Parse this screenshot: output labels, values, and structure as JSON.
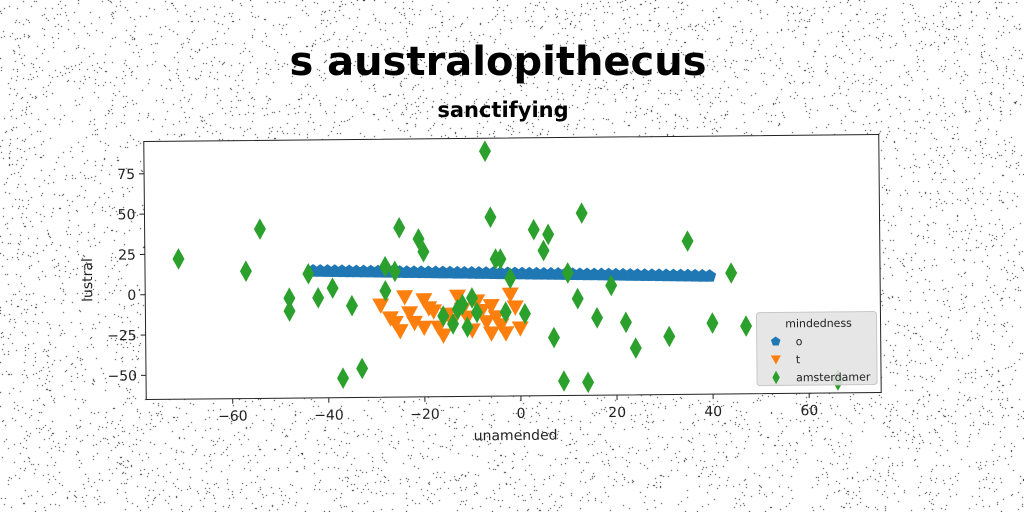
{
  "chart_data": {
    "type": "scatter",
    "suptitle": "s australopithecus",
    "title": "sanctifying",
    "xlabel": "unamended",
    "ylabel": "lustral",
    "xlim": [
      -78,
      75
    ],
    "ylim": [
      -65,
      95
    ],
    "xticks": [
      -60,
      -40,
      -20,
      0,
      20,
      40,
      60
    ],
    "yticks": [
      -50,
      -25,
      0,
      25,
      50,
      75
    ],
    "grid": false,
    "legend": {
      "title": "mindedness",
      "placement": "lower-right"
    },
    "series": [
      {
        "name": "o",
        "marker": "pentagon",
        "color": "#1f77b4",
        "points": [
          [
            -43,
            13.7
          ],
          [
            -41.5,
            13.6
          ],
          [
            -40,
            13.5
          ],
          [
            -38.5,
            13.4
          ],
          [
            -37,
            13.3
          ],
          [
            -35.5,
            13.2
          ],
          [
            -34,
            13.1
          ],
          [
            -32.5,
            13
          ],
          [
            -31,
            12.9
          ],
          [
            -29.5,
            12.8
          ],
          [
            -28,
            12.7
          ],
          [
            -26.5,
            12.6
          ],
          [
            -25,
            12.5
          ],
          [
            -23.5,
            12.4
          ],
          [
            -22,
            12.3
          ],
          [
            -20.5,
            12.2
          ],
          [
            -19,
            12.1
          ],
          [
            -17.5,
            12
          ],
          [
            -16,
            11.9
          ],
          [
            -14.5,
            11.8
          ],
          [
            -13,
            11.7
          ],
          [
            -11.5,
            11.6
          ],
          [
            -10,
            11.5
          ],
          [
            -8.5,
            11.4
          ],
          [
            -7,
            11.3
          ],
          [
            -5.5,
            11.2
          ],
          [
            -4,
            11.1
          ],
          [
            -2.5,
            11
          ],
          [
            -1,
            10.9
          ],
          [
            0.5,
            10.8
          ],
          [
            2,
            10.7
          ],
          [
            3.5,
            10.6
          ],
          [
            5,
            10.5
          ],
          [
            6.5,
            10.4
          ],
          [
            8,
            10.3
          ],
          [
            9.5,
            10.2
          ],
          [
            11,
            10.1
          ],
          [
            12.5,
            10
          ],
          [
            14,
            9.9
          ],
          [
            15.5,
            9.8
          ],
          [
            17,
            9.7
          ],
          [
            18.5,
            9.6
          ],
          [
            20,
            9.5
          ],
          [
            21.5,
            9.4
          ],
          [
            23,
            9.3
          ],
          [
            24.5,
            9.2
          ],
          [
            26,
            9.1
          ],
          [
            27.5,
            9
          ],
          [
            29,
            8.9
          ],
          [
            30.5,
            8.8
          ],
          [
            32,
            8.7
          ],
          [
            33.5,
            8.6
          ],
          [
            35,
            8.5
          ],
          [
            36.5,
            8.4
          ],
          [
            38,
            8.3
          ],
          [
            39.5,
            8.2
          ]
        ]
      },
      {
        "name": "t",
        "marker": "triangle-down",
        "color": "#ff7f0e",
        "points": [
          [
            -29,
            -8
          ],
          [
            -27,
            -16
          ],
          [
            -25,
            -24
          ],
          [
            -24,
            -3
          ],
          [
            -23,
            -13
          ],
          [
            -22,
            -19
          ],
          [
            -20,
            -5
          ],
          [
            -19,
            -10
          ],
          [
            -18,
            -12
          ],
          [
            -17,
            -22
          ],
          [
            -16,
            -27
          ],
          [
            -15,
            -14
          ],
          [
            -14,
            -18
          ],
          [
            -13,
            -3
          ],
          [
            -12,
            -11
          ],
          [
            -11,
            -16
          ],
          [
            -10,
            -24
          ],
          [
            -9,
            -6
          ],
          [
            -8,
            -12
          ],
          [
            -7,
            -19
          ],
          [
            -6,
            -9
          ],
          [
            -5,
            -16
          ],
          [
            -4,
            -21
          ],
          [
            -3,
            -26
          ],
          [
            -2,
            -2
          ],
          [
            -1,
            -10
          ],
          [
            0,
            -23
          ],
          [
            -26,
            -19
          ],
          [
            -20,
            -22
          ],
          [
            -6,
            -26
          ]
        ]
      },
      {
        "name": "amsterdamer",
        "marker": "diamond",
        "color": "#2ca02c",
        "points": [
          [
            -71,
            22
          ],
          [
            -57,
            14
          ],
          [
            -54,
            40
          ],
          [
            -48,
            -3
          ],
          [
            -48,
            -11
          ],
          [
            -44,
            12
          ],
          [
            -42,
            -3
          ],
          [
            -39,
            3
          ],
          [
            -37,
            -53
          ],
          [
            -35,
            -8
          ],
          [
            -33,
            -47
          ],
          [
            -28,
            1
          ],
          [
            -28,
            16
          ],
          [
            -26,
            13
          ],
          [
            -25,
            40
          ],
          [
            -21,
            33
          ],
          [
            -20,
            25
          ],
          [
            -16,
            -15
          ],
          [
            -14,
            -20
          ],
          [
            -13,
            -11
          ],
          [
            -12,
            -8
          ],
          [
            -11,
            -22
          ],
          [
            -10,
            -4
          ],
          [
            -9,
            -13
          ],
          [
            -7,
            87
          ],
          [
            -6,
            46
          ],
          [
            -5,
            20
          ],
          [
            -4,
            20
          ],
          [
            -3,
            -13
          ],
          [
            -2,
            8
          ],
          [
            1,
            -14
          ],
          [
            3,
            38
          ],
          [
            5,
            25
          ],
          [
            6,
            35
          ],
          [
            7,
            -29
          ],
          [
            9,
            -56
          ],
          [
            10,
            11
          ],
          [
            12,
            -5
          ],
          [
            13,
            48
          ],
          [
            14,
            -57
          ],
          [
            16,
            -17
          ],
          [
            19,
            3
          ],
          [
            22,
            -20
          ],
          [
            24,
            -36
          ],
          [
            31,
            -29
          ],
          [
            35,
            30
          ],
          [
            40,
            -21
          ],
          [
            44,
            10
          ],
          [
            47,
            -23
          ],
          [
            66,
            -57
          ]
        ]
      }
    ]
  },
  "colors": {
    "o": "#1f77b4",
    "t": "#ff7f0e",
    "amsterdamer": "#2ca02c"
  }
}
